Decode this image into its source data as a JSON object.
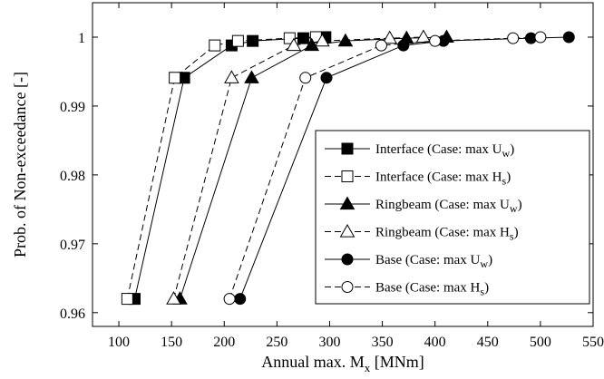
{
  "chart_data": {
    "type": "line",
    "xlabel": "Annual max. M",
    "xlabel_sub": "x",
    "xlabel_unit": " [MNm]",
    "ylabel": "Prob. of Non-exceedance [-]",
    "xlim": [
      75,
      550
    ],
    "ylim": [
      0.958,
      1.005
    ],
    "xticks": [
      100,
      150,
      200,
      250,
      300,
      350,
      400,
      450,
      500,
      550
    ],
    "yticks": [
      0.96,
      0.97,
      0.98,
      0.99,
      1
    ],
    "ytick_labels": [
      "0.96",
      "0.97",
      "0.98",
      "0.99",
      "1"
    ],
    "grid": false,
    "legend_position": "bottom-right",
    "series": [
      {
        "name": "Interface (Case: max U",
        "name_sub": "w",
        "name_end": ")",
        "marker": "square",
        "filled": true,
        "dash": "solid",
        "x": [
          115,
          162,
          207,
          227,
          275,
          296
        ],
        "y": [
          0.962,
          0.9941,
          0.9988,
          0.99945,
          0.99985,
          1.0
        ]
      },
      {
        "name": "Interface (Case: max H",
        "name_sub": "s",
        "name_end": ")",
        "marker": "square",
        "filled": false,
        "dash": "dashed",
        "x": [
          108,
          153,
          191,
          213,
          262,
          287
        ],
        "y": [
          0.962,
          0.9941,
          0.9988,
          0.99945,
          0.99985,
          1.0
        ]
      },
      {
        "name": "Ringbeam (Case: max U",
        "name_sub": "w",
        "name_end": ")",
        "marker": "triangle",
        "filled": true,
        "dash": "solid",
        "x": [
          158,
          226,
          283,
          315,
          373,
          411
        ],
        "y": [
          0.962,
          0.9941,
          0.9988,
          0.99945,
          0.99985,
          1.0
        ]
      },
      {
        "name": "Ringbeam (Case: max H",
        "name_sub": "s",
        "name_end": ")",
        "marker": "triangle",
        "filled": false,
        "dash": "dashed",
        "x": [
          152,
          207,
          266,
          293,
          357,
          389
        ],
        "y": [
          0.962,
          0.9941,
          0.9988,
          0.99945,
          0.99985,
          1.0
        ]
      },
      {
        "name": "Base (Case: max U",
        "name_sub": "w",
        "name_end": ")",
        "marker": "circle",
        "filled": true,
        "dash": "solid",
        "x": [
          215,
          297,
          370,
          408,
          491,
          527
        ],
        "y": [
          0.962,
          0.9941,
          0.9988,
          0.99945,
          0.99985,
          1.0
        ]
      },
      {
        "name": "Base (Case: max H",
        "name_sub": "s",
        "name_end": ")",
        "marker": "circle",
        "filled": false,
        "dash": "dashed",
        "x": [
          205,
          277,
          349,
          400,
          474,
          500
        ],
        "y": [
          0.962,
          0.9941,
          0.9988,
          0.99945,
          0.99985,
          1.0
        ]
      }
    ]
  }
}
